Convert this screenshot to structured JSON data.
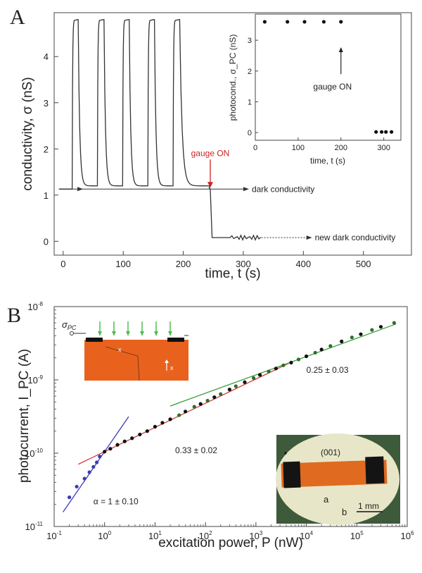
{
  "figure": {
    "panel_a_letter": "A",
    "panel_b_letter": "B"
  },
  "colors": {
    "trace": "#333333",
    "gauge_arrow": "#cc2222",
    "data_point": "#111111",
    "fit_blue": "#3b3bb8",
    "fit_red": "#d23c3c",
    "fit_green": "#3a9e3a",
    "schematic_substrate": "#e8621e",
    "schematic_light": "#4fbf4f",
    "photo_bg": "#e8e6c8",
    "photo_crystal": "#e06a20",
    "photo_frame": "#3d5a3a"
  },
  "chart_data": [
    {
      "id": "A-main",
      "type": "line",
      "title": "",
      "xlabel": "time, t (s)",
      "ylabel": "conductivity, σ (nS)",
      "xlim": [
        -15,
        580
      ],
      "ylim": [
        -0.3,
        4.95
      ],
      "xticks": [
        0,
        100,
        200,
        300,
        400,
        500
      ],
      "yticks": [
        0,
        1,
        2,
        3,
        4
      ],
      "dark_level": 1.13,
      "new_dark_level": 0.08,
      "pulses": [
        {
          "t_on": 15,
          "t_off": 25
        },
        {
          "t_on": 57,
          "t_off": 68
        },
        {
          "t_on": 99,
          "t_off": 110
        },
        {
          "t_on": 141,
          "t_off": 152
        },
        {
          "t_on": 183,
          "t_off": 194
        }
      ],
      "peak": 4.8,
      "plateau_after_decay": 1.2,
      "gauge_time": 245,
      "series": [],
      "annotations": {
        "gauge": "gauge ON",
        "dark": "dark conductivity",
        "new_dark": "new dark conductivity"
      }
    },
    {
      "id": "A-inset",
      "type": "scatter",
      "xlabel": "time, t (s)",
      "ylabel": "photocond., σ_PC (nS)",
      "xlim": [
        0,
        340
      ],
      "ylim": [
        -0.25,
        3.85
      ],
      "xticks": [
        0,
        100,
        200,
        300
      ],
      "yticks": [
        0,
        1,
        2,
        3
      ],
      "x": [
        22,
        75,
        115,
        160,
        200,
        282,
        295,
        305,
        318
      ],
      "y": [
        3.6,
        3.6,
        3.6,
        3.6,
        3.6,
        0.02,
        0.02,
        0.02,
        0.02
      ],
      "annotation": "gauge ON",
      "annotation_x": 200
    },
    {
      "id": "B-main",
      "type": "scatter",
      "xlabel": "excitation power, P (nW)",
      "ylabel": "photocurrent, I_PC (A)",
      "xscale": "log",
      "yscale": "log",
      "xlim": [
        0.1,
        1000000
      ],
      "ylim": [
        1e-11,
        1e-08
      ],
      "xtick_exponents": [
        -1,
        0,
        1,
        2,
        3,
        4,
        5,
        6
      ],
      "ytick_exponents": [
        -11,
        -10,
        -9,
        -8
      ],
      "x": [
        0.2,
        0.28,
        0.4,
        0.5,
        0.6,
        0.7,
        0.8,
        1.0,
        1.3,
        1.8,
        2.5,
        3.5,
        5,
        7,
        10,
        14,
        20,
        30,
        40,
        60,
        80,
        110,
        150,
        200,
        300,
        400,
        600,
        900,
        1200,
        1800,
        2500,
        3500,
        5000,
        7000,
        10000,
        15000,
        20000,
        30000,
        50000,
        80000,
        120000,
        200000,
        300000,
        550000
      ],
      "y": [
        2.5e-11,
        3.5e-11,
        4.5e-11,
        5.5e-11,
        6.5e-11,
        7.5e-11,
        9e-11,
        1.05e-10,
        1.15e-10,
        1.3e-10,
        1.45e-10,
        1.6e-10,
        1.8e-10,
        2e-10,
        2.3e-10,
        2.6e-10,
        2.9e-10,
        3.3e-10,
        3.7e-10,
        4.3e-10,
        4.7e-10,
        5.2e-10,
        5.8e-10,
        6.4e-10,
        7.4e-10,
        8.2e-10,
        9.3e-10,
        1.06e-09,
        1.17e-09,
        1.3e-09,
        1.43e-09,
        1.58e-09,
        1.72e-09,
        1.9e-09,
        2.1e-09,
        2.35e-09,
        2.6e-09,
        2.9e-09,
        3.35e-09,
        3.8e-09,
        4.2e-09,
        4.8e-09,
        5.3e-09,
        6e-09
      ],
      "fits": [
        {
          "label": "α = 1 ± 0.10",
          "slope": 1.0,
          "x_range": [
            0.15,
            3
          ],
          "anchor": [
            1,
            1.05e-10
          ],
          "color_key": "fit_blue"
        },
        {
          "label": "0.33 ± 0.02",
          "slope": 0.33,
          "x_range": [
            0.3,
            5000
          ],
          "anchor": [
            1,
            1.05e-10
          ],
          "color_key": "fit_red"
        },
        {
          "label": "0.25 ± 0.03",
          "slope": 0.25,
          "x_range": [
            20,
            600000
          ],
          "anchor": [
            1000,
            1.17e-09
          ],
          "color_key": "fit_green"
        }
      ],
      "inset_schematic_labels": {
        "sigma": "σ",
        "sigma_sub": "PC",
        "x_label": "x",
        "x_axis": "x"
      },
      "inset_photo_labels": {
        "orientation": "(001)",
        "a": "a",
        "b": "b",
        "scale": "1 mm"
      }
    }
  ]
}
